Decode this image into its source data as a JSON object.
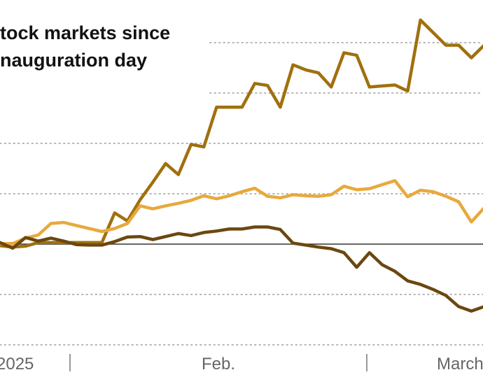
{
  "chart_data": {
    "type": "line",
    "title_lines": [
      "tock markets since",
      "nauguration day"
    ],
    "xlabel": "",
    "ylabel": "",
    "x_tick_labels": [
      "2025",
      "Feb.",
      "March"
    ],
    "x_divider_count": 2,
    "grid": "dotted horizontal",
    "reference_line": "solid baseline",
    "series": [
      {
        "color": "#a0700e",
        "points": [
          [
            0,
            -0.3
          ],
          [
            1,
            -0.6
          ],
          [
            2,
            -0.4
          ],
          [
            3,
            0.3
          ],
          [
            4,
            0.3
          ],
          [
            5,
            0.3
          ],
          [
            6,
            0.3
          ],
          [
            7,
            0.3
          ],
          [
            8,
            0.3
          ],
          [
            9,
            6.2
          ],
          [
            10,
            4.6
          ],
          [
            11,
            8.8
          ],
          [
            12,
            12.3
          ],
          [
            13,
            16.0
          ],
          [
            14,
            13.8
          ],
          [
            15,
            19.8
          ],
          [
            16,
            19.3
          ],
          [
            17,
            27.2
          ],
          [
            18,
            27.2
          ],
          [
            19,
            27.2
          ],
          [
            20,
            31.9
          ],
          [
            21,
            31.5
          ],
          [
            22,
            27.2
          ],
          [
            23,
            35.6
          ],
          [
            24,
            34.6
          ],
          [
            25,
            34.0
          ],
          [
            26,
            31.2
          ],
          [
            27,
            38.0
          ],
          [
            28,
            37.5
          ],
          [
            29,
            31.2
          ],
          [
            30,
            31.4
          ],
          [
            31,
            31.6
          ],
          [
            32,
            30.4
          ],
          [
            33,
            44.5
          ],
          [
            34,
            42.0
          ],
          [
            35,
            39.5
          ],
          [
            36,
            39.5
          ],
          [
            37,
            37.0
          ],
          [
            38,
            39.5
          ]
        ]
      },
      {
        "color": "#e8a93c",
        "points": [
          [
            0,
            0.1
          ],
          [
            1,
            0.1
          ],
          [
            2,
            1.2
          ],
          [
            3,
            1.8
          ],
          [
            4,
            4.1
          ],
          [
            5,
            4.3
          ],
          [
            6,
            3.7
          ],
          [
            7,
            3.1
          ],
          [
            8,
            2.5
          ],
          [
            9,
            3.1
          ],
          [
            10,
            4.1
          ],
          [
            11,
            7.6
          ],
          [
            12,
            7.0
          ],
          [
            13,
            7.6
          ],
          [
            14,
            8.1
          ],
          [
            15,
            8.7
          ],
          [
            16,
            9.6
          ],
          [
            17,
            9.0
          ],
          [
            18,
            9.6
          ],
          [
            19,
            10.4
          ],
          [
            20,
            11.1
          ],
          [
            21,
            9.5
          ],
          [
            22,
            9.2
          ],
          [
            23,
            9.8
          ],
          [
            24,
            9.6
          ],
          [
            25,
            9.5
          ],
          [
            26,
            9.8
          ],
          [
            27,
            11.5
          ],
          [
            28,
            10.8
          ],
          [
            29,
            11.0
          ],
          [
            30,
            11.8
          ],
          [
            31,
            12.6
          ],
          [
            32,
            9.4
          ],
          [
            33,
            10.7
          ],
          [
            34,
            10.4
          ],
          [
            35,
            9.5
          ],
          [
            36,
            8.4
          ],
          [
            37,
            4.4
          ],
          [
            38,
            7.2
          ]
        ]
      },
      {
        "color": "#6b4710",
        "points": [
          [
            0,
            0.3
          ],
          [
            1,
            -0.8
          ],
          [
            2,
            1.3
          ],
          [
            3,
            0.6
          ],
          [
            4,
            1.2
          ],
          [
            5,
            0.6
          ],
          [
            6,
            -0.1
          ],
          [
            7,
            -0.2
          ],
          [
            8,
            -0.2
          ],
          [
            9,
            0.5
          ],
          [
            10,
            1.4
          ],
          [
            11,
            1.5
          ],
          [
            12,
            0.9
          ],
          [
            13,
            1.5
          ],
          [
            14,
            2.1
          ],
          [
            15,
            1.7
          ],
          [
            16,
            2.3
          ],
          [
            17,
            2.6
          ],
          [
            18,
            3.0
          ],
          [
            19,
            3.0
          ],
          [
            20,
            3.4
          ],
          [
            21,
            3.4
          ],
          [
            22,
            2.9
          ],
          [
            23,
            0.2
          ],
          [
            24,
            -0.2
          ],
          [
            25,
            -0.6
          ],
          [
            26,
            -0.9
          ],
          [
            27,
            -1.7
          ],
          [
            28,
            -4.6
          ],
          [
            29,
            -1.7
          ],
          [
            30,
            -4.1
          ],
          [
            31,
            -5.4
          ],
          [
            32,
            -7.3
          ],
          [
            33,
            -8.0
          ],
          [
            34,
            -9.0
          ],
          [
            35,
            -10.2
          ],
          [
            36,
            -12.4
          ],
          [
            37,
            -13.3
          ],
          [
            38,
            -12.4
          ]
        ]
      }
    ]
  }
}
